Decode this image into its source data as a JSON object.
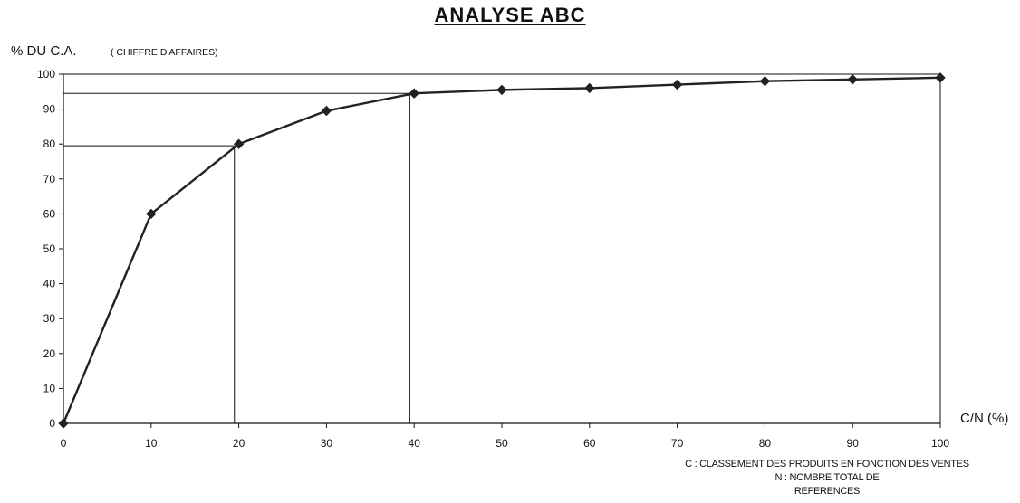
{
  "chart_data": {
    "type": "line",
    "title": "ANALYSE ABC",
    "ylabel": "% DU C.A.",
    "ylabel_sub": "( CHIFFRE D'AFFAIRES)",
    "xlabel": "C/N (%)",
    "note_lines": [
      "C : CLASSEMENT DES PRODUITS EN FONCTION DES VENTES",
      "N : NOMBRE TOTAL DE",
      "REFERENCES"
    ],
    "x": [
      0,
      10,
      20,
      30,
      40,
      50,
      60,
      70,
      80,
      90,
      100
    ],
    "values": [
      0,
      60,
      80,
      89.5,
      94.5,
      95.5,
      96,
      97,
      98,
      98.5,
      99
    ],
    "xlim": [
      0,
      100
    ],
    "ylim": [
      0,
      100
    ],
    "x_ticks": [
      "0",
      "10",
      "20",
      "30",
      "40",
      "50",
      "60",
      "70",
      "80",
      "90",
      "100"
    ],
    "y_ticks": [
      "0",
      "10",
      "20",
      "30",
      "40",
      "50",
      "60",
      "70",
      "80",
      "90",
      "100"
    ],
    "reference_lines": [
      {
        "x": 19.5,
        "y": 79.5
      },
      {
        "x": 39.5,
        "y": 94.5
      }
    ],
    "grid": false,
    "line_color": "#222222"
  }
}
